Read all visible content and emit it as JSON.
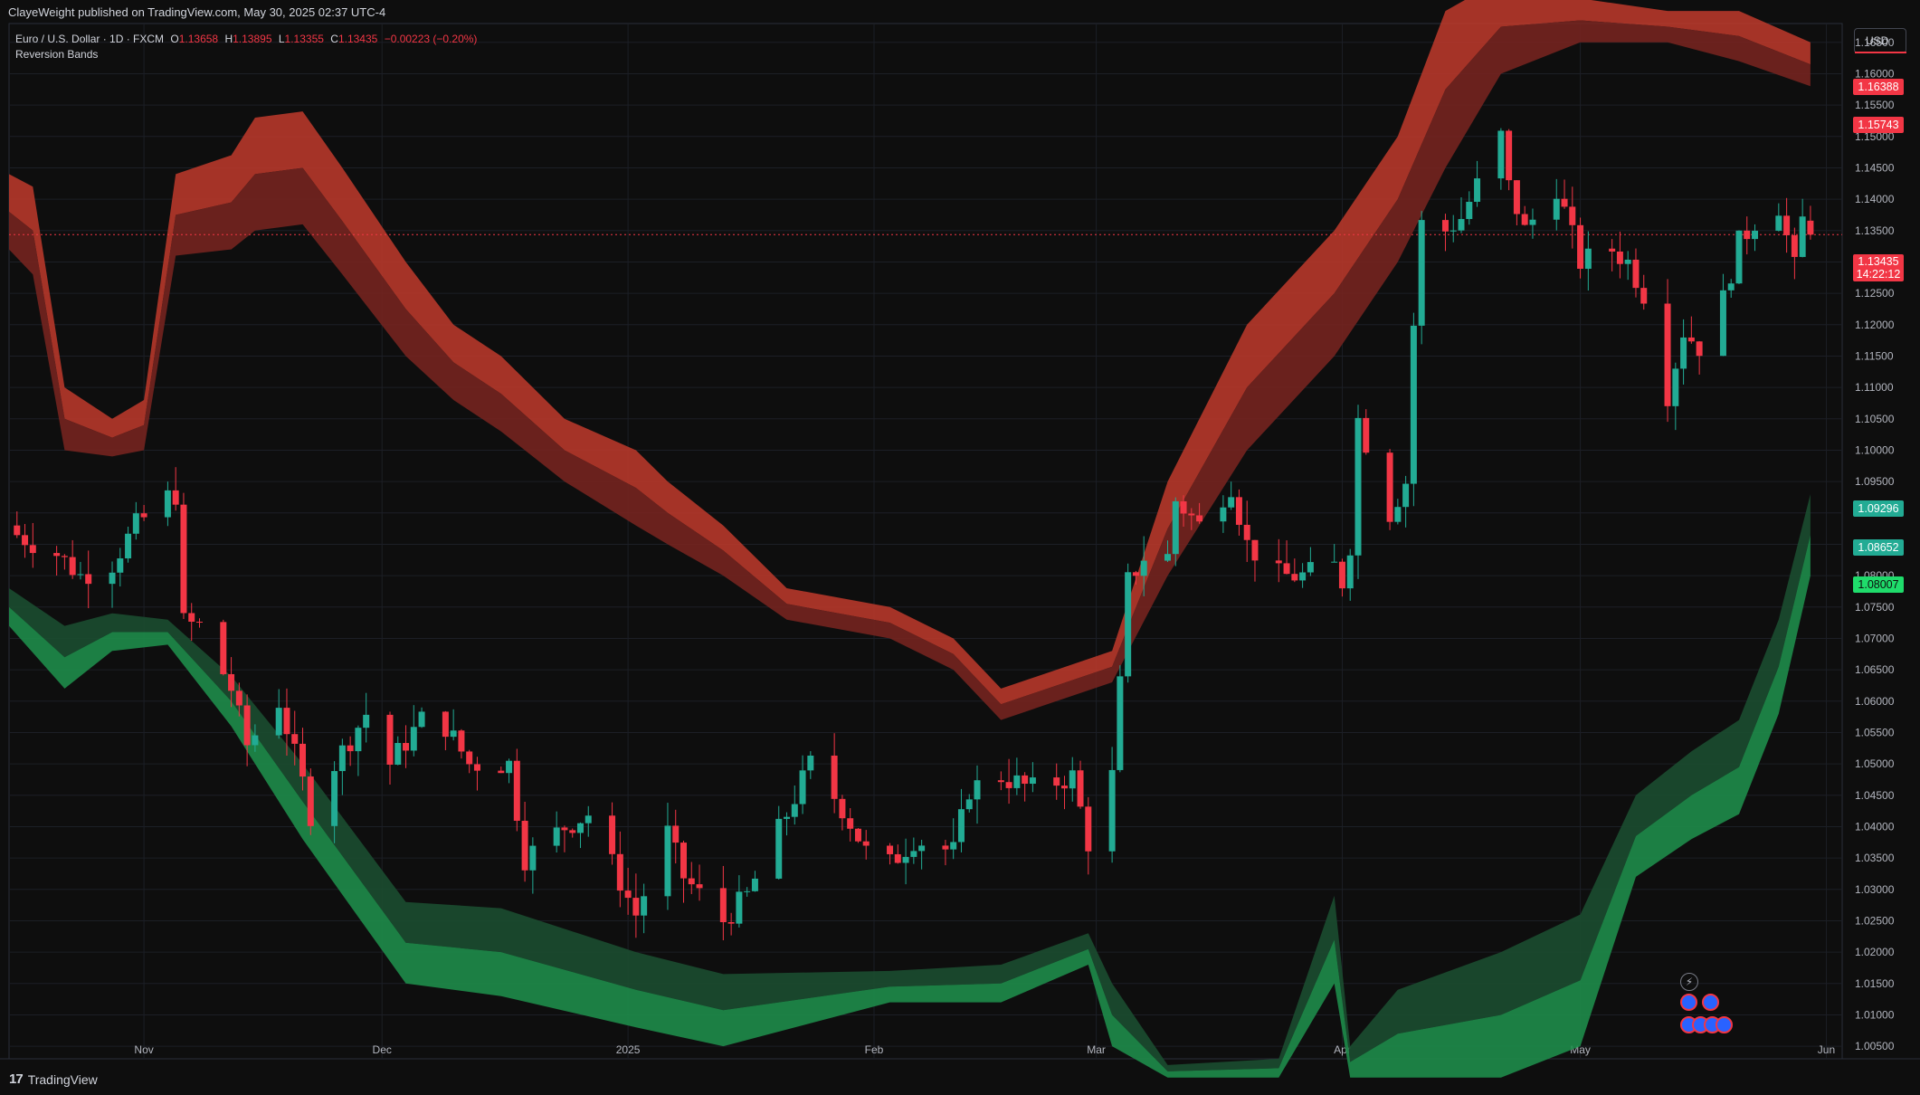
{
  "header": {
    "published": "ClayeWeight published on TradingView.com, May 30, 2025 02:37 UTC-4"
  },
  "legend": {
    "symbol": "Euro / U.S. Dollar · 1D · FXCM",
    "o_label": "O",
    "o": "1.13658",
    "h_label": "H",
    "h": "1.13895",
    "l_label": "L",
    "l": "1.13355",
    "c_label": "C",
    "c": "1.13435",
    "change": "−0.00223 (−0.20%)",
    "indicator": "Reversion Bands"
  },
  "currency_button": "USD",
  "brand": "TradingView",
  "price_tags": {
    "red_top": "1.16388",
    "red_mid": "1.15743",
    "current_price": "1.13435",
    "countdown": "14:22:12",
    "green_1": "1.09296",
    "green_2": "1.08652",
    "green_3": "1.08007"
  },
  "colors": {
    "background": "#0e0e0e",
    "up": "#22ab94",
    "down": "#f23645",
    "upper_band": "#c0392b",
    "lower_band": "#1e8c4a"
  },
  "icons": [
    "lightning-icon",
    "event-flag-icon"
  ],
  "chart_data": {
    "type": "candlestick",
    "title": "Euro / U.S. Dollar · 1D · FXCM",
    "x_ticks": [
      "Nov",
      "Dec",
      "2025",
      "Feb",
      "Mar",
      "Apr",
      "May",
      "Jun"
    ],
    "y_ticks": [
      "1.16500",
      "1.16000",
      "1.15500",
      "1.15000",
      "1.14500",
      "1.14000",
      "1.13500",
      "1.13000",
      "1.12500",
      "1.12000",
      "1.11500",
      "1.11000",
      "1.10500",
      "1.10000",
      "1.09500",
      "1.09000",
      "1.08500",
      "1.08000",
      "1.07500",
      "1.07000",
      "1.06500",
      "1.06000",
      "1.05500",
      "1.05000",
      "1.04500",
      "1.04000",
      "1.03500",
      "1.03000",
      "1.02500",
      "1.02000",
      "1.01500",
      "1.01000",
      "1.00500"
    ],
    "ylim": [
      1.003,
      1.168
    ],
    "x_range": [
      "2024-10-15",
      "2025-06-03"
    ],
    "bar_period": "1 day",
    "close_anchors": [
      [
        "2024-10-16",
        1.0865
      ],
      [
        "2024-10-21",
        1.0835
      ],
      [
        "2024-10-24",
        1.08
      ],
      [
        "2024-10-28",
        1.082
      ],
      [
        "2024-10-31",
        1.088
      ],
      [
        "2024-11-04",
        1.0925
      ],
      [
        "2024-11-05",
        1.093
      ],
      [
        "2024-11-06",
        1.0725
      ],
      [
        "2024-11-08",
        1.072
      ],
      [
        "2024-11-12",
        1.062
      ],
      [
        "2024-11-14",
        1.053
      ],
      [
        "2024-11-18",
        1.06
      ],
      [
        "2024-11-21",
        1.047
      ],
      [
        "2024-11-22",
        1.042
      ],
      [
        "2024-11-25",
        1.05
      ],
      [
        "2024-11-29",
        1.058
      ],
      [
        "2024-12-02",
        1.05
      ],
      [
        "2024-12-06",
        1.057
      ],
      [
        "2024-12-09",
        1.056
      ],
      [
        "2024-12-12",
        1.05
      ],
      [
        "2024-12-17",
        1.05
      ],
      [
        "2024-12-19",
        1.035
      ],
      [
        "2024-12-24",
        1.04
      ],
      [
        "2024-12-27",
        1.042
      ],
      [
        "2025-01-02",
        1.026
      ],
      [
        "2025-01-06",
        1.039
      ],
      [
        "2025-01-08",
        1.032
      ],
      [
        "2025-01-13",
        1.025
      ],
      [
        "2025-01-16",
        1.029
      ],
      [
        "2025-01-21",
        1.042
      ],
      [
        "2025-01-24",
        1.05
      ],
      [
        "2025-01-28",
        1.043
      ],
      [
        "2025-01-31",
        1.036
      ],
      [
        "2025-02-03",
        1.034
      ],
      [
        "2025-02-06",
        1.038
      ],
      [
        "2025-02-11",
        1.036
      ],
      [
        "2025-02-13",
        1.046
      ],
      [
        "2025-02-17",
        1.048
      ],
      [
        "2025-02-21",
        1.046
      ],
      [
        "2025-02-26",
        1.048
      ],
      [
        "2025-02-28",
        1.0375
      ],
      [
        "2025-03-03",
        1.048
      ],
      [
        "2025-03-04",
        1.0625
      ],
      [
        "2025-03-05",
        1.079
      ],
      [
        "2025-03-07",
        1.083
      ],
      [
        "2025-03-10",
        1.083
      ],
      [
        "2025-03-11",
        1.092
      ],
      [
        "2025-03-14",
        1.088
      ],
      [
        "2025-03-18",
        1.0945
      ],
      [
        "2025-03-20",
        1.085
      ],
      [
        "2025-03-24",
        1.08
      ],
      [
        "2025-03-27",
        1.08
      ],
      [
        "2025-03-31",
        1.0815
      ],
      [
        "2025-04-01",
        1.079
      ],
      [
        "2025-04-02",
        1.085
      ],
      [
        "2025-04-03",
        1.105
      ],
      [
        "2025-04-07",
        1.09
      ],
      [
        "2025-04-09",
        1.095
      ],
      [
        "2025-04-10",
        1.12
      ],
      [
        "2025-04-11",
        1.136
      ],
      [
        "2025-04-14",
        1.135
      ],
      [
        "2025-04-16",
        1.137
      ],
      [
        "2025-04-21",
        1.15
      ],
      [
        "2025-04-22",
        1.142
      ],
      [
        "2025-04-24",
        1.135
      ],
      [
        "2025-04-28",
        1.142
      ],
      [
        "2025-05-01",
        1.13
      ],
      [
        "2025-05-05",
        1.132
      ],
      [
        "2025-05-07",
        1.13
      ],
      [
        "2025-05-09",
        1.125
      ],
      [
        "2025-05-12",
        1.109
      ],
      [
        "2025-05-14",
        1.119
      ],
      [
        "2025-05-16",
        1.1165
      ],
      [
        "2025-05-19",
        1.124
      ],
      [
        "2025-05-21",
        1.133
      ],
      [
        "2025-05-23",
        1.1365
      ],
      [
        "2025-05-26",
        1.139
      ],
      [
        "2025-05-28",
        1.129
      ],
      [
        "2025-05-29",
        1.13658
      ],
      [
        "2025-05-30",
        1.13435
      ]
    ],
    "last_bar": {
      "date": "2025-05-30",
      "open": 1.13658,
      "high": 1.13895,
      "low": 1.13355,
      "close": 1.13435
    },
    "series": [
      {
        "name": "Reversion Bands",
        "role": "upper band (inner/outer edges)",
        "outer": [
          [
            "2024-10-15",
            1.144
          ],
          [
            "2024-10-18",
            1.142
          ],
          [
            "2024-10-22",
            1.11
          ],
          [
            "2024-10-28",
            1.105
          ],
          [
            "2024-11-01",
            1.108
          ],
          [
            "2024-11-05",
            1.144
          ],
          [
            "2024-11-12",
            1.147
          ],
          [
            "2024-11-15",
            1.153
          ],
          [
            "2024-11-21",
            1.154
          ],
          [
            "2024-11-26",
            1.145
          ],
          [
            "2024-12-04",
            1.13
          ],
          [
            "2024-12-10",
            1.12
          ],
          [
            "2024-12-16",
            1.115
          ],
          [
            "2024-12-24",
            1.105
          ],
          [
            "2025-01-02",
            1.1
          ],
          [
            "2025-01-06",
            1.095
          ],
          [
            "2025-01-13",
            1.088
          ],
          [
            "2025-01-21",
            1.078
          ],
          [
            "2025-02-03",
            1.075
          ],
          [
            "2025-02-11",
            1.07
          ],
          [
            "2025-02-17",
            1.062
          ],
          [
            "2025-02-24",
            1.065
          ],
          [
            "2025-03-03",
            1.068
          ],
          [
            "2025-03-10",
            1.095
          ],
          [
            "2025-03-20",
            1.12
          ],
          [
            "2025-03-31",
            1.135
          ],
          [
            "2025-04-08",
            1.15
          ],
          [
            "2025-04-14",
            1.17
          ],
          [
            "2025-04-21",
            1.175
          ],
          [
            "2025-05-01",
            1.172
          ],
          [
            "2025-05-12",
            1.17
          ],
          [
            "2025-05-21",
            1.17
          ],
          [
            "2025-05-30",
            1.165
          ]
        ],
        "inner": [
          [
            "2024-10-15",
            1.132
          ],
          [
            "2024-10-18",
            1.128
          ],
          [
            "2024-10-22",
            1.1
          ],
          [
            "2024-10-28",
            1.099
          ],
          [
            "2024-11-01",
            1.1
          ],
          [
            "2024-11-05",
            1.131
          ],
          [
            "2024-11-12",
            1.132
          ],
          [
            "2024-11-15",
            1.135
          ],
          [
            "2024-11-21",
            1.136
          ],
          [
            "2024-11-26",
            1.128
          ],
          [
            "2024-12-04",
            1.115
          ],
          [
            "2024-12-10",
            1.108
          ],
          [
            "2024-12-16",
            1.103
          ],
          [
            "2024-12-24",
            1.095
          ],
          [
            "2025-01-02",
            1.088
          ],
          [
            "2025-01-06",
            1.085
          ],
          [
            "2025-01-13",
            1.08
          ],
          [
            "2025-01-21",
            1.073
          ],
          [
            "2025-02-03",
            1.07
          ],
          [
            "2025-02-11",
            1.065
          ],
          [
            "2025-02-17",
            1.057
          ],
          [
            "2025-02-24",
            1.06
          ],
          [
            "2025-03-03",
            1.063
          ],
          [
            "2025-03-10",
            1.08
          ],
          [
            "2025-03-20",
            1.1
          ],
          [
            "2025-03-31",
            1.115
          ],
          [
            "2025-04-08",
            1.13
          ],
          [
            "2025-04-14",
            1.145
          ],
          [
            "2025-04-21",
            1.16
          ],
          [
            "2025-05-01",
            1.165
          ],
          [
            "2025-05-12",
            1.165
          ],
          [
            "2025-05-21",
            1.162
          ],
          [
            "2025-05-30",
            1.158
          ]
        ]
      },
      {
        "name": "Reversion Bands",
        "role": "lower band (inner/outer edges)",
        "inner": [
          [
            "2024-10-15",
            1.078
          ],
          [
            "2024-10-22",
            1.072
          ],
          [
            "2024-10-28",
            1.074
          ],
          [
            "2024-11-04",
            1.073
          ],
          [
            "2024-11-12",
            1.064
          ],
          [
            "2024-11-21",
            1.05
          ],
          [
            "2024-12-04",
            1.028
          ],
          [
            "2024-12-16",
            1.027
          ],
          [
            "2025-01-02",
            1.02
          ],
          [
            "2025-01-13",
            1.0165
          ],
          [
            "2025-02-03",
            1.017
          ],
          [
            "2025-02-17",
            1.018
          ],
          [
            "2025-02-28",
            1.023
          ],
          [
            "2025-03-03",
            1.015
          ],
          [
            "2025-03-10",
            1.002
          ],
          [
            "2025-03-24",
            1.003
          ],
          [
            "2025-03-31",
            1.029
          ],
          [
            "2025-04-02",
            1.005
          ],
          [
            "2025-04-08",
            1.014
          ],
          [
            "2025-04-21",
            1.02
          ],
          [
            "2025-05-01",
            1.026
          ],
          [
            "2025-05-08",
            1.045
          ],
          [
            "2025-05-15",
            1.052
          ],
          [
            "2025-05-21",
            1.057
          ],
          [
            "2025-05-26",
            1.073
          ],
          [
            "2025-05-30",
            1.093
          ]
        ],
        "outer": [
          [
            "2024-10-15",
            1.072
          ],
          [
            "2024-10-22",
            1.062
          ],
          [
            "2024-10-28",
            1.068
          ],
          [
            "2024-11-04",
            1.069
          ],
          [
            "2024-11-12",
            1.056
          ],
          [
            "2024-11-21",
            1.038
          ],
          [
            "2024-12-04",
            1.015
          ],
          [
            "2024-12-16",
            1.013
          ],
          [
            "2025-01-02",
            1.008
          ],
          [
            "2025-01-13",
            1.005
          ],
          [
            "2025-02-03",
            1.012
          ],
          [
            "2025-02-17",
            1.012
          ],
          [
            "2025-02-28",
            1.018
          ],
          [
            "2025-03-03",
            1.005
          ],
          [
            "2025-03-10",
            1.0
          ],
          [
            "2025-03-24",
            1.0
          ],
          [
            "2025-03-31",
            1.015
          ],
          [
            "2025-04-02",
            1.0
          ],
          [
            "2025-04-08",
            1.0
          ],
          [
            "2025-04-21",
            1.0
          ],
          [
            "2025-05-01",
            1.005
          ],
          [
            "2025-05-08",
            1.032
          ],
          [
            "2025-05-15",
            1.038
          ],
          [
            "2025-05-21",
            1.042
          ],
          [
            "2025-05-26",
            1.058
          ],
          [
            "2025-05-30",
            1.08
          ]
        ]
      }
    ],
    "grid": true,
    "current_price_line": 1.13435
  }
}
